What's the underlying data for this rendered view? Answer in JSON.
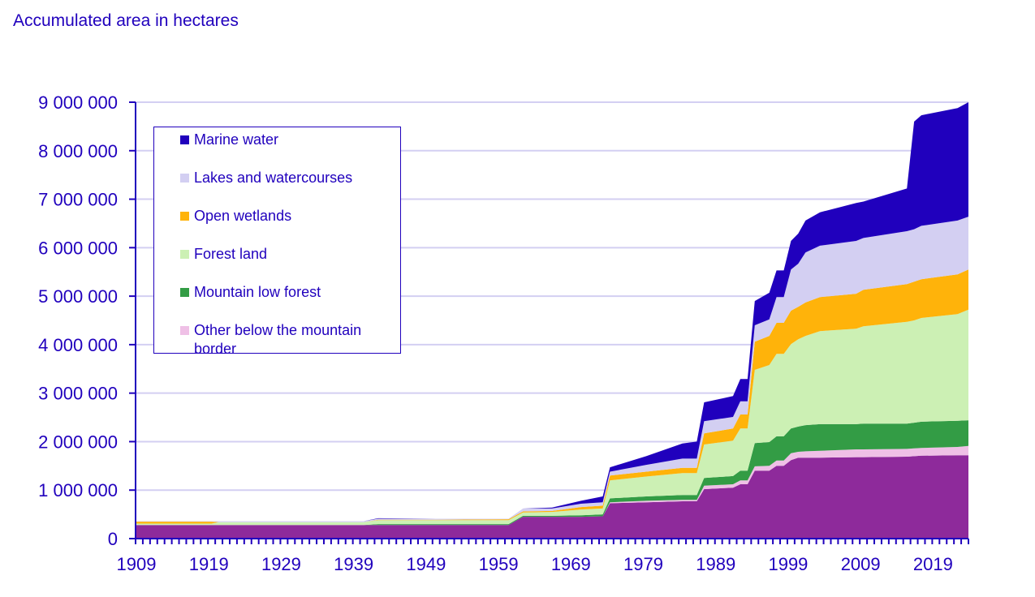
{
  "chart_data": {
    "type": "area",
    "stacked": true,
    "title": "Accumulated area in hectares",
    "xlabel": "",
    "ylabel": "",
    "ylim": [
      0,
      9000000
    ],
    "yticks": [
      0,
      1000000,
      2000000,
      3000000,
      4000000,
      5000000,
      6000000,
      7000000,
      8000000,
      9000000
    ],
    "ytick_labels": [
      "0",
      "1 000 000",
      "2 000 000",
      "3 000 000",
      "4 000 000",
      "5 000 000",
      "6 000 000",
      "7 000 000",
      "8 000 000",
      "9 000 000"
    ],
    "xlim": [
      1909,
      2023
    ],
    "xtick_labels": [
      "1909",
      "1919",
      "1929",
      "1939",
      "1949",
      "1959",
      "1969",
      "1979",
      "1989",
      "1999",
      "2009",
      "2019"
    ],
    "grid": "horizontal",
    "legend_position": "top-left",
    "x": [
      1909,
      1919,
      1920,
      1940,
      1942,
      1950,
      1960,
      1962,
      1966,
      1970,
      1973,
      1974,
      1979,
      1984,
      1986,
      1987,
      1991,
      1992,
      1993,
      1994,
      1996,
      1997,
      1998,
      1999,
      2000,
      2001,
      2003,
      2008,
      2009,
      2015,
      2016,
      2017,
      2022,
      2023
    ],
    "series": [
      {
        "color": "#8e2a9b",
        "values": [
          280000,
          280000,
          280000,
          280000,
          280000,
          280000,
          280000,
          450000,
          450000,
          450000,
          460000,
          730000,
          750000,
          770000,
          770000,
          1020000,
          1050000,
          1120000,
          1120000,
          1400000,
          1400000,
          1500000,
          1500000,
          1620000,
          1670000,
          1670000,
          1670000,
          1680000,
          1680000,
          1690000,
          1700000,
          1710000,
          1720000,
          1720000
        ]
      },
      {
        "name": "Other below the mountain border",
        "color": "#efc0e6",
        "values": [
          0,
          0,
          0,
          0,
          0,
          0,
          0,
          0,
          0,
          0,
          0,
          20000,
          30000,
          30000,
          30000,
          70000,
          70000,
          80000,
          80000,
          90000,
          100000,
          110000,
          110000,
          140000,
          120000,
          130000,
          140000,
          160000,
          160000,
          160000,
          160000,
          160000,
          170000,
          190000
        ]
      },
      {
        "name": "Mountain low forest",
        "color": "#339c45",
        "values": [
          0,
          0,
          0,
          0,
          20000,
          20000,
          20000,
          20000,
          20000,
          30000,
          40000,
          80000,
          90000,
          100000,
          100000,
          160000,
          170000,
          200000,
          200000,
          480000,
          490000,
          500000,
          500000,
          510000,
          520000,
          540000,
          550000,
          520000,
          530000,
          520000,
          530000,
          540000,
          540000,
          530000
        ]
      },
      {
        "name": "Forest land",
        "color": "#ccf0b4",
        "values": [
          30000,
          30000,
          60000,
          60000,
          80000,
          80000,
          80000,
          70000,
          80000,
          120000,
          120000,
          370000,
          410000,
          450000,
          450000,
          690000,
          730000,
          870000,
          870000,
          1510000,
          1590000,
          1700000,
          1700000,
          1740000,
          1800000,
          1840000,
          1920000,
          1970000,
          2010000,
          2100000,
          2110000,
          2140000,
          2200000,
          2280000
        ]
      },
      {
        "name": "Open wetlands",
        "color": "#ffb30a",
        "values": [
          40000,
          40000,
          0,
          0,
          10000,
          10000,
          20000,
          20000,
          20000,
          50000,
          60000,
          100000,
          100000,
          110000,
          110000,
          230000,
          250000,
          290000,
          290000,
          580000,
          600000,
          640000,
          640000,
          690000,
          670000,
          690000,
          700000,
          720000,
          750000,
          780000,
          800000,
          800000,
          820000,
          830000
        ]
      },
      {
        "name": "Lakes and watercourses",
        "color": "#d3cff2",
        "values": [
          10000,
          10000,
          20000,
          20000,
          20000,
          20000,
          10000,
          60000,
          50000,
          70000,
          70000,
          80000,
          140000,
          190000,
          190000,
          250000,
          240000,
          270000,
          270000,
          340000,
          340000,
          530000,
          530000,
          850000,
          890000,
          1030000,
          1060000,
          1090000,
          1070000,
          1090000,
          1080000,
          1100000,
          1110000,
          1090000
        ]
      },
      {
        "name": "Marine water",
        "color": "#2000bd",
        "values": [
          0,
          0,
          0,
          0,
          10000,
          0,
          0,
          0,
          20000,
          60000,
          120000,
          90000,
          180000,
          310000,
          350000,
          390000,
          430000,
          460000,
          460000,
          500000,
          550000,
          550000,
          550000,
          590000,
          620000,
          660000,
          690000,
          780000,
          750000,
          880000,
          2220000,
          2280000,
          2320000,
          2360000
        ]
      }
    ],
    "legend_order": [
      "Marine water",
      "Lakes and watercourses",
      "Open wetlands",
      "Forest land",
      "Mountain low forest",
      "Other below the mountain border"
    ],
    "axis_color": "#2000bd",
    "grid_color": "#d3cff2"
  }
}
